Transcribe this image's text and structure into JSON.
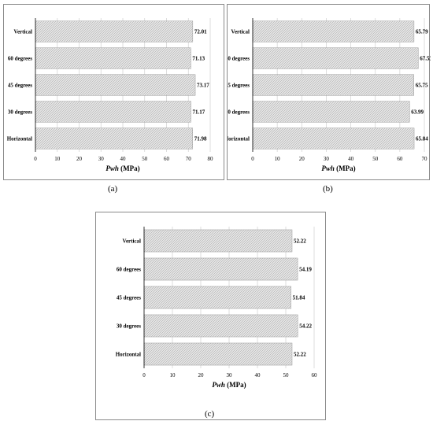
{
  "chart_data": [
    {
      "type": "bar",
      "orientation": "horizontal",
      "panel_label": "(a)",
      "categories": [
        "Vertical",
        "60 degrees",
        "45 degrees",
        "30 degrees",
        "Horizontal"
      ],
      "values": [
        72.01,
        71.13,
        73.17,
        71.17,
        71.98
      ],
      "value_labels": [
        "72.01",
        "71.13",
        "73.17",
        "71.17",
        "71.98"
      ],
      "xlabel_symbol": "Pwh",
      "xlabel_unit": " (MPa)",
      "xlim": [
        0,
        80
      ],
      "ticks": [
        0,
        10,
        20,
        30,
        40,
        50,
        60,
        70,
        80
      ],
      "grid": true
    },
    {
      "type": "bar",
      "orientation": "horizontal",
      "panel_label": "(b)",
      "categories": [
        "Vertical",
        "60 degrees",
        "45 degrees",
        "30 degrees",
        "Horizontal"
      ],
      "values": [
        65.79,
        67.53,
        65.75,
        63.99,
        65.84
      ],
      "value_labels": [
        "65.79",
        "67.53",
        "65.75",
        "63.99",
        "65.84"
      ],
      "xlabel_symbol": "Pwh",
      "xlabel_unit": " (MPa)",
      "xlim": [
        0,
        70
      ],
      "ticks": [
        0,
        10,
        20,
        30,
        40,
        50,
        60,
        70
      ],
      "grid": true
    },
    {
      "type": "bar",
      "orientation": "horizontal",
      "panel_label": "(c)",
      "categories": [
        "Vertical",
        "60 degrees",
        "45 degrees",
        "30 degrees",
        "Horizontal"
      ],
      "values": [
        52.22,
        54.19,
        51.84,
        54.22,
        52.22
      ],
      "value_labels": [
        "52.22",
        "54.19",
        "51.84",
        "54.22",
        "52.22"
      ],
      "xlabel_symbol": "Pwh",
      "xlabel_unit": " (MPa)",
      "xlim": [
        0,
        60
      ],
      "ticks": [
        0,
        10,
        20,
        30,
        40,
        50,
        60
      ],
      "grid": true
    }
  ],
  "colors": {
    "bar_fill": "#e4e4e4",
    "bar_stroke": "#9a9a9a",
    "grid": "#d0d0d0",
    "axis": "#000000"
  }
}
